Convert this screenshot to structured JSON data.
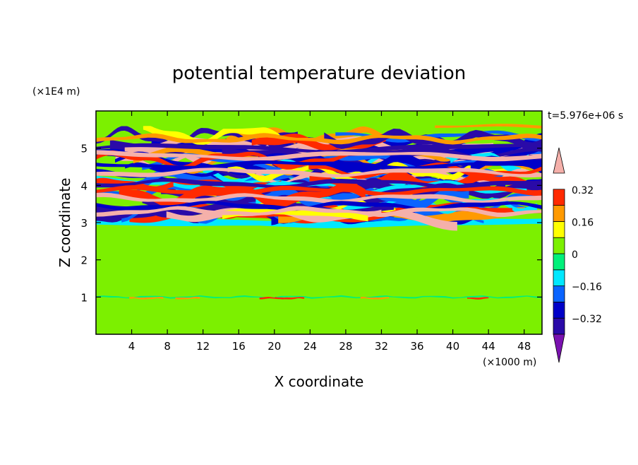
{
  "chart_data": {
    "type": "heatmap",
    "title": "potential temperature deviation",
    "xlabel": "X coordinate",
    "ylabel": "Z coordinate",
    "x_unit": "(×1000 m)",
    "y_unit": "(×1E4 m)",
    "time_label": "t=5.976e+06 s",
    "xlim": [
      0,
      50
    ],
    "ylim": [
      0,
      6
    ],
    "x_ticks": [
      4,
      8,
      12,
      16,
      20,
      24,
      28,
      32,
      36,
      40,
      44,
      48
    ],
    "y_ticks": [
      1,
      2,
      3,
      4,
      5
    ],
    "colorbar": {
      "levels": [
        -0.4,
        -0.32,
        -0.24,
        -0.16,
        -0.08,
        0,
        0.08,
        0.16,
        0.24,
        0.32,
        0.4
      ],
      "labels": [
        "0.32",
        "0.16",
        "0",
        "−0.16",
        "−0.32"
      ],
      "label_values": [
        0.32,
        0.16,
        0,
        -0.16,
        -0.32
      ],
      "colors": [
        "#7a12b0",
        "#2a0aa8",
        "#0000c8",
        "#0a64ff",
        "#00e8ff",
        "#00f07a",
        "#7cf000",
        "#ffff00",
        "#ff9a00",
        "#ff2a00",
        "#f5b0aa"
      ]
    },
    "layers": [
      {
        "region": "z 0.0–1.0 (lower)",
        "z": [
          0,
          1
        ],
        "dominant": [
          0,
          0.08
        ]
      },
      {
        "region": "z 1.0–3.0 (middle)",
        "z": [
          1,
          3
        ],
        "dominant": [
          0,
          0.08
        ]
      },
      {
        "region": "z 3.0–5.5 (turbulent band)",
        "z": [
          3,
          5.5
        ],
        "dominant": [
          -0.4,
          0.4
        ]
      },
      {
        "region": "z 5.5–6.0 (upper)",
        "z": [
          5.5,
          6
        ],
        "dominant": [
          0,
          0.08
        ]
      }
    ]
  }
}
